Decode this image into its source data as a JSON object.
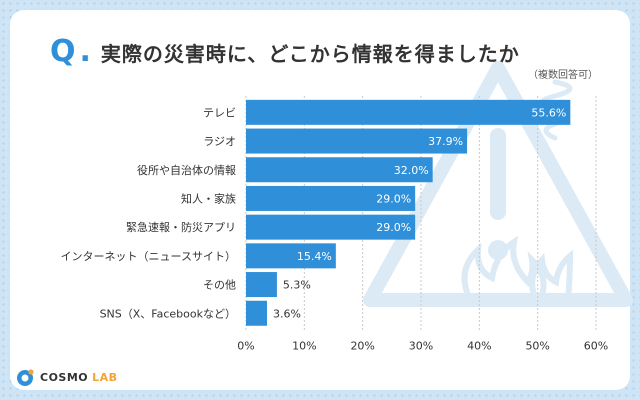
{
  "question_mark": "Q",
  "question_dot": ".",
  "colors": {
    "bar": "#2f8fd8",
    "accent": "#2f8fd8",
    "grid": "#c8c8c8",
    "text": "#333333",
    "watermark": "#dceaf6"
  },
  "logo": {
    "word": "COSMO",
    "sub": "LAB"
  },
  "chart_data": {
    "type": "bar",
    "orientation": "horizontal",
    "title": "実際の災害時に、どこから情報を得ましたか",
    "note": "（複数回答可）",
    "categories": [
      "テレビ",
      "ラジオ",
      "役所や自治体の情報",
      "知人・家族",
      "緊急速報・防災アプリ",
      "インターネット（ニュースサイト）",
      "その他",
      "SNS（X、Facebookなど）"
    ],
    "values": [
      55.6,
      37.9,
      32.0,
      29.0,
      29.0,
      15.4,
      5.3,
      3.6
    ],
    "value_labels": [
      "55.6%",
      "37.9%",
      "32.0%",
      "29.0%",
      "29.0%",
      "15.4%",
      "5.3%",
      "3.6%"
    ],
    "xlim": [
      0,
      60
    ],
    "xticks": [
      0,
      10,
      20,
      30,
      40,
      50,
      60
    ],
    "xtick_labels": [
      "0%",
      "10%",
      "20%",
      "30%",
      "40%",
      "50%",
      "60%"
    ],
    "xlabel": "",
    "ylabel": "",
    "grid": true
  }
}
